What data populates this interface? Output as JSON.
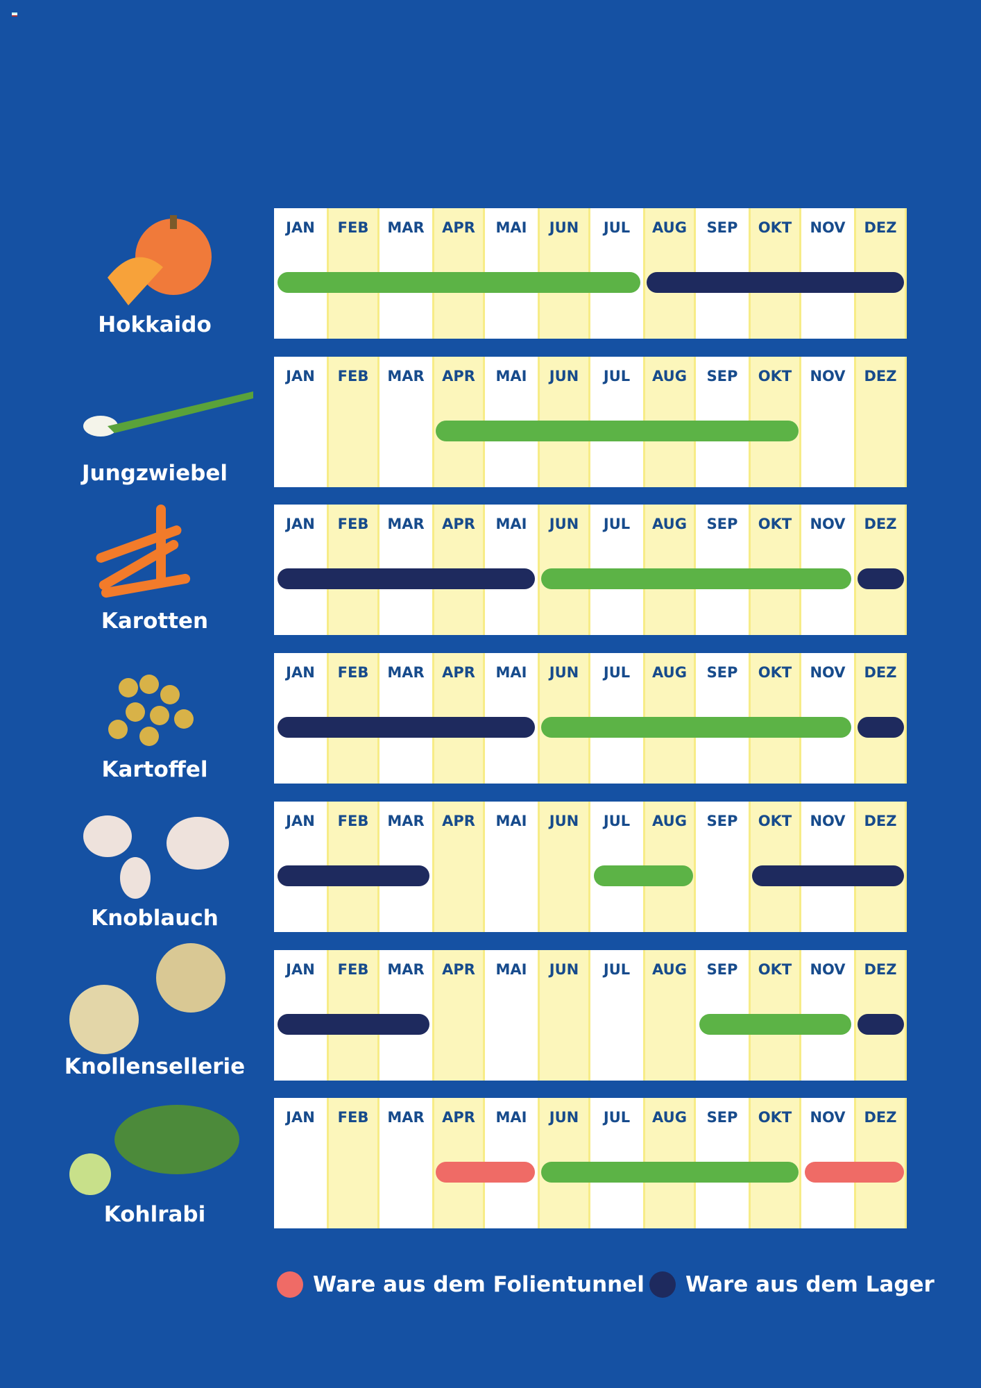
{
  "months": [
    "JAN",
    "FEB",
    "MAR",
    "APR",
    "MAI",
    "JUN",
    "JUL",
    "AUG",
    "SEP",
    "OKT",
    "NOV",
    "DEZ"
  ],
  "colors": {
    "background": "#1551a3",
    "season": "#5cb346",
    "storage": "#1e2a5e",
    "tunnel": "#ef6b66",
    "alt_column": "#fcf6bb"
  },
  "vegetables": [
    {
      "name": "Hokkaido",
      "icon": "pumpkin-icon",
      "bars": [
        {
          "type": "season",
          "from": "JAN",
          "to": "JUL"
        },
        {
          "type": "storage",
          "from": "AUG",
          "to": "DEZ"
        }
      ]
    },
    {
      "name": "Jungzwiebel",
      "icon": "spring-onion-icon",
      "bars": [
        {
          "type": "season",
          "from": "APR",
          "to": "OKT"
        }
      ]
    },
    {
      "name": "Karotten",
      "icon": "carrot-icon",
      "bars": [
        {
          "type": "storage",
          "from": "JAN",
          "to": "MAI"
        },
        {
          "type": "season",
          "from": "JUN",
          "to": "NOV"
        },
        {
          "type": "storage",
          "from": "DEZ",
          "to": "DEZ"
        }
      ]
    },
    {
      "name": "Kartoffel",
      "icon": "potato-icon",
      "bars": [
        {
          "type": "storage",
          "from": "JAN",
          "to": "MAI"
        },
        {
          "type": "season",
          "from": "JUN",
          "to": "NOV"
        },
        {
          "type": "storage",
          "from": "DEZ",
          "to": "DEZ"
        }
      ]
    },
    {
      "name": "Knoblauch",
      "icon": "garlic-icon",
      "bars": [
        {
          "type": "storage",
          "from": "JAN",
          "to": "MAR"
        },
        {
          "type": "season",
          "from": "JUL",
          "to": "AUG"
        },
        {
          "type": "storage",
          "from": "OKT",
          "to": "DEZ"
        }
      ]
    },
    {
      "name": "Knollensellerie",
      "icon": "celeriac-icon",
      "bars": [
        {
          "type": "storage",
          "from": "JAN",
          "to": "MAR"
        },
        {
          "type": "season",
          "from": "SEP",
          "to": "NOV"
        },
        {
          "type": "storage",
          "from": "DEZ",
          "to": "DEZ"
        }
      ]
    },
    {
      "name": "Kohlrabi",
      "icon": "kohlrabi-icon",
      "bars": [
        {
          "type": "tunnel",
          "from": "APR",
          "to": "MAI"
        },
        {
          "type": "season",
          "from": "JUN",
          "to": "OKT"
        },
        {
          "type": "tunnel",
          "from": "NOV",
          "to": "DEZ"
        }
      ]
    }
  ],
  "legend": {
    "tunnel": "Ware aus dem Folientunnel",
    "storage": "Ware aus dem Lager"
  }
}
